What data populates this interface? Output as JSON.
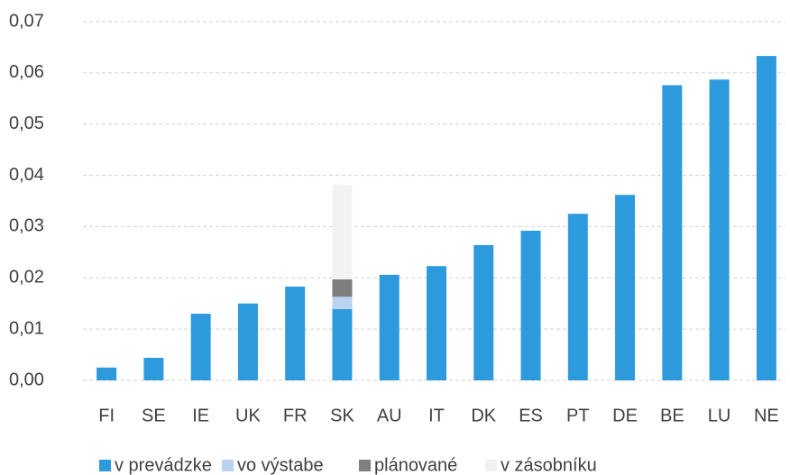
{
  "chart_data": {
    "type": "bar",
    "stacked": true,
    "categories": [
      "FI",
      "SE",
      "IE",
      "UK",
      "FR",
      "SK",
      "AU",
      "IT",
      "DK",
      "ES",
      "PT",
      "DE",
      "BE",
      "LU",
      "NE"
    ],
    "series": [
      {
        "name": "v prevádzke",
        "color": "#2e9ade",
        "values": [
          0.0025,
          0.0044,
          0.013,
          0.015,
          0.0183,
          0.0139,
          0.0206,
          0.0223,
          0.0264,
          0.0292,
          0.0325,
          0.0362,
          0.0576,
          0.0587,
          0.0633
        ]
      },
      {
        "name": "vo výstabe",
        "color": "#b9d3f0",
        "values": [
          0,
          0,
          0,
          0,
          0,
          0.0024,
          0,
          0,
          0,
          0,
          0,
          0,
          0,
          0,
          0
        ]
      },
      {
        "name": "plánované",
        "color": "#7f7f7f",
        "values": [
          0,
          0,
          0,
          0,
          0,
          0.0034,
          0,
          0,
          0,
          0,
          0,
          0,
          0,
          0,
          0
        ]
      },
      {
        "name": "v zásobníku",
        "color": "#f2f2f2",
        "values": [
          0,
          0,
          0,
          0,
          0,
          0.0184,
          0,
          0,
          0,
          0,
          0,
          0,
          0,
          0,
          0
        ]
      }
    ],
    "ylim": [
      0,
      0.07
    ],
    "yticks": [
      {
        "value": 0,
        "label": "0,00"
      },
      {
        "value": 0.01,
        "label": "0,01"
      },
      {
        "value": 0.02,
        "label": "0,02"
      },
      {
        "value": 0.03,
        "label": "0,03"
      },
      {
        "value": 0.04,
        "label": "0,04"
      },
      {
        "value": 0.05,
        "label": "0,05"
      },
      {
        "value": 0.06,
        "label": "0,06"
      },
      {
        "value": 0.07,
        "label": "0,07"
      }
    ],
    "grid": true,
    "legend": "bottom"
  }
}
